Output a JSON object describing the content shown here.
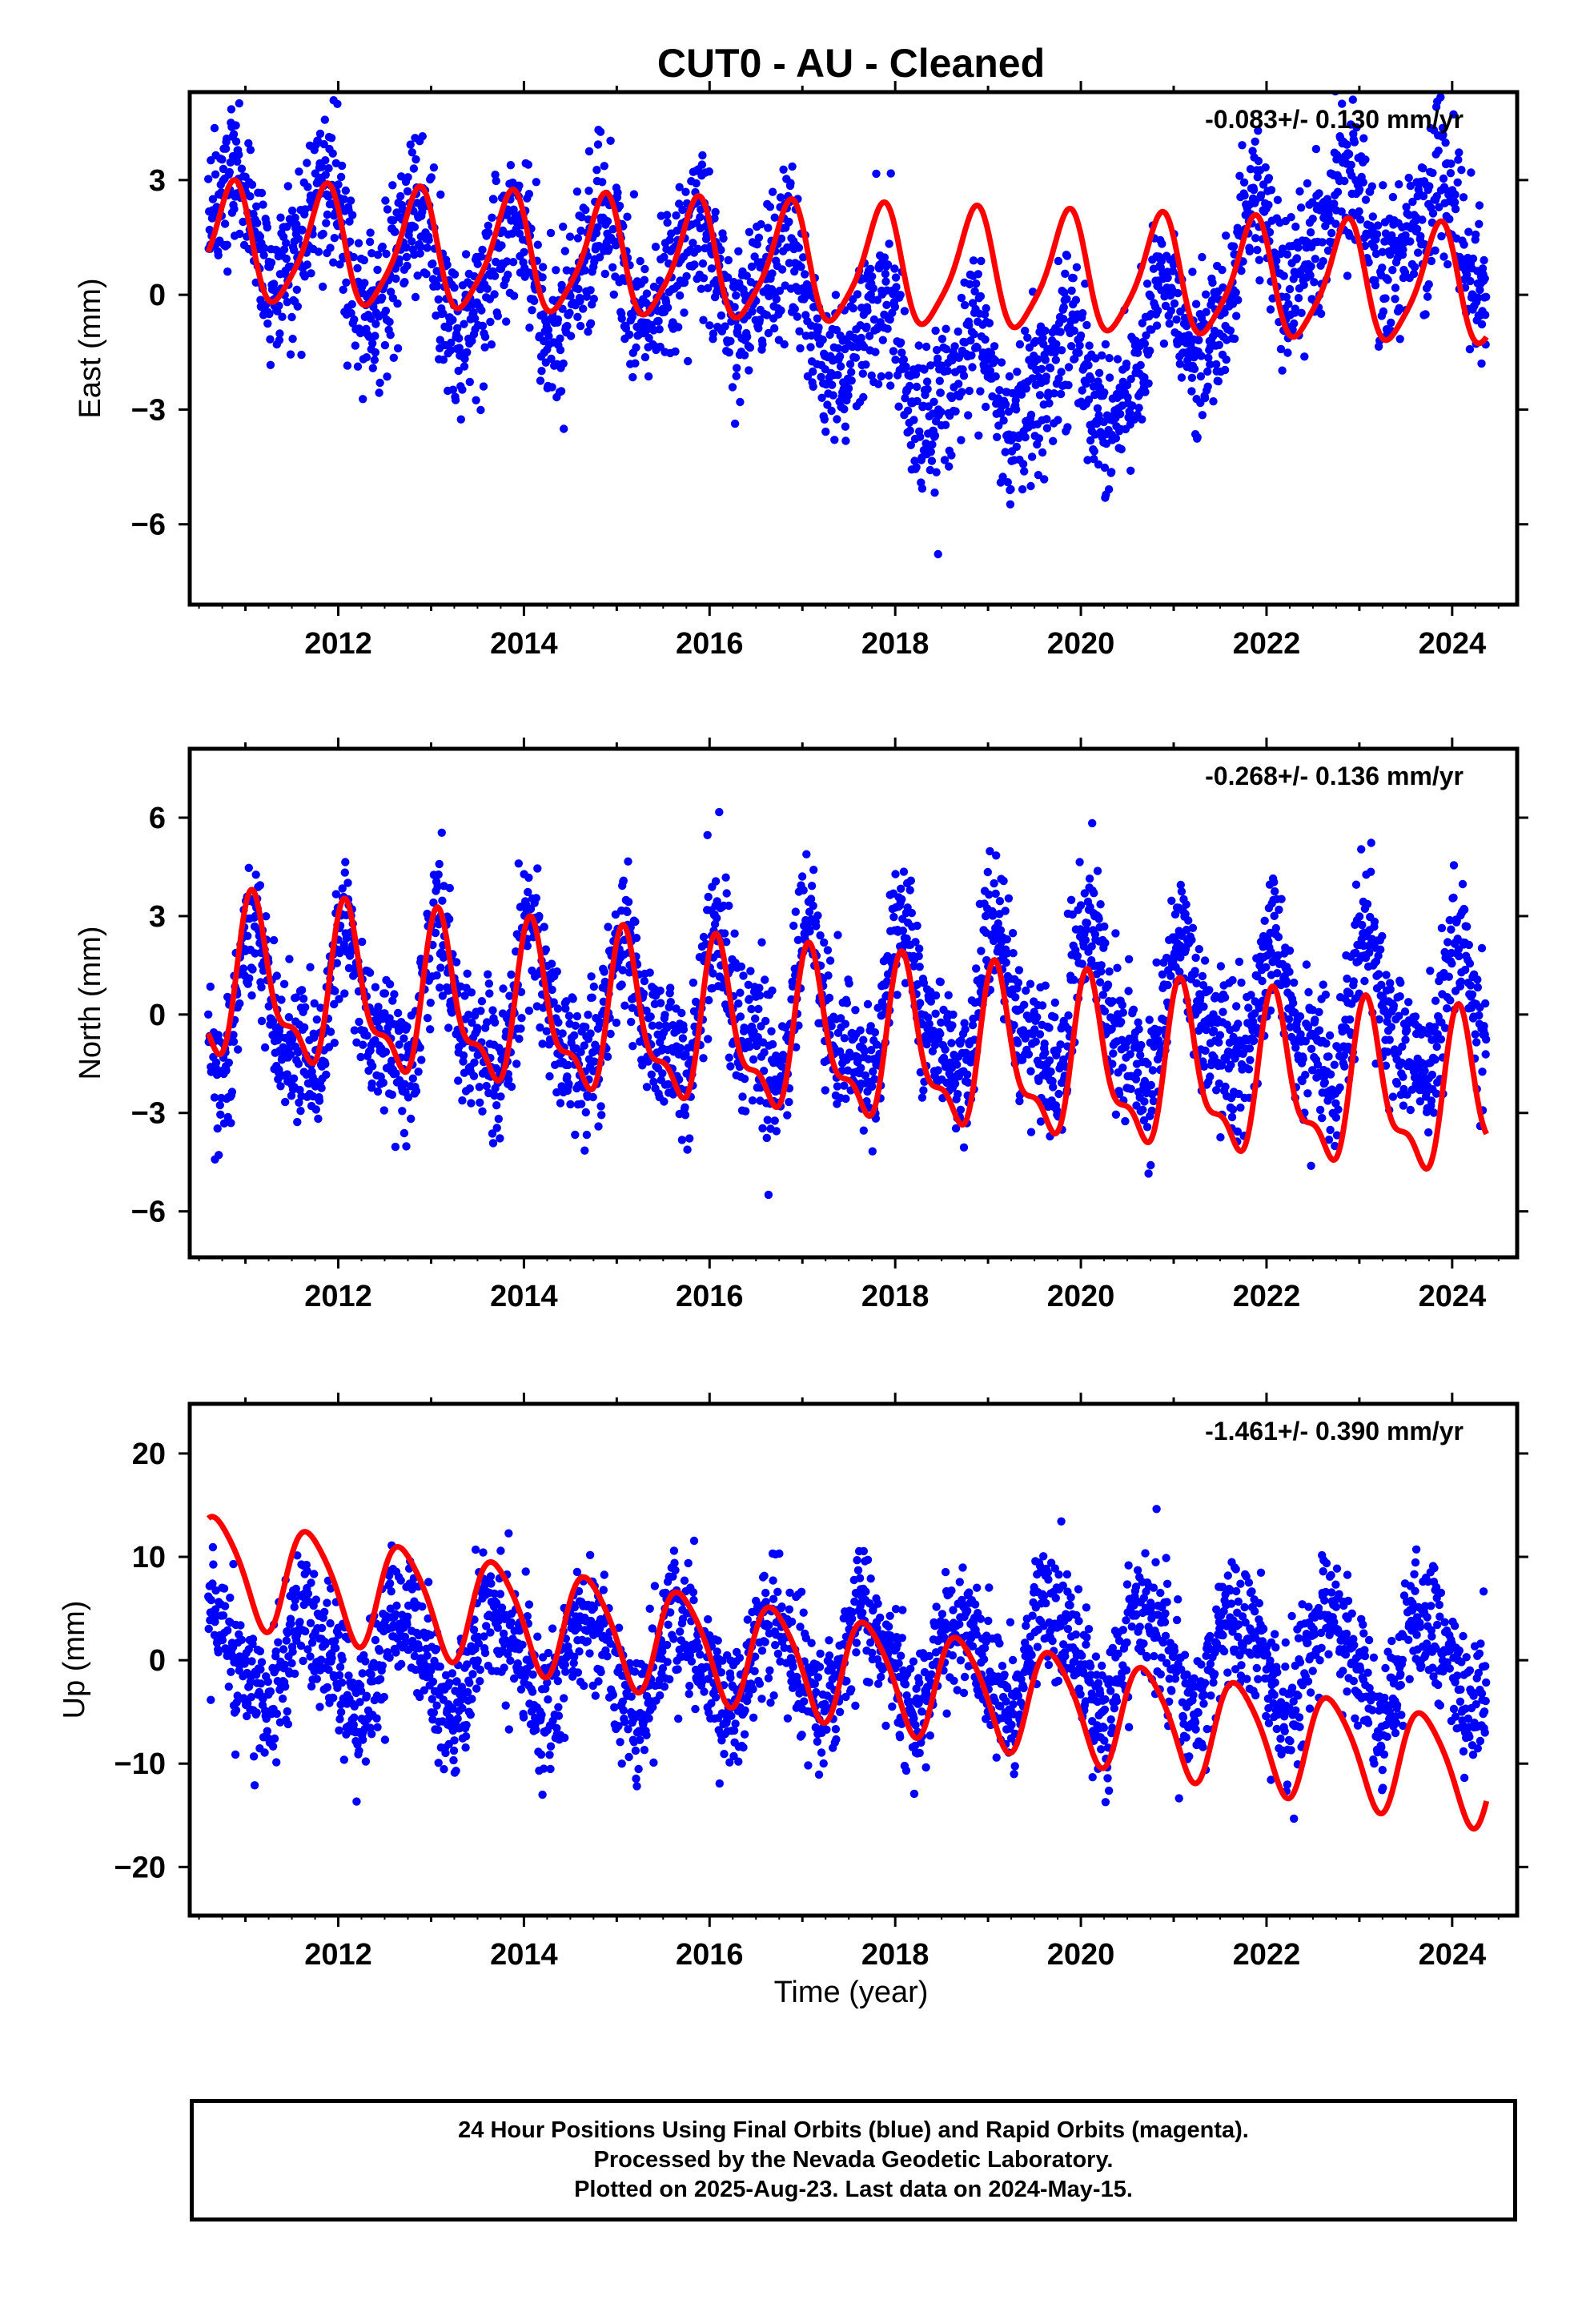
{
  "title": "CUT0  - AU - Cleaned",
  "xlabel": "Time (year)",
  "colors": {
    "points": "#0000ff",
    "fit": "#ff0000",
    "frame": "#000000"
  },
  "footer": [
    "24 Hour Positions Using Final Orbits (blue) and Rapid Orbits (magenta).",
    "Processed by the Nevada Geodetic Laboratory.",
    "Plotted on 2025-Aug-23. Last data on 2024-May-15."
  ],
  "chart_data": [
    {
      "type": "scatter",
      "ylabel": "East (mm)",
      "rate_label": "-0.083+/- 0.130 mm/yr",
      "xlim": [
        2010.4,
        2024.7
      ],
      "ylim": [
        -8.1,
        5.3
      ],
      "xticks": [
        2012,
        2014,
        2016,
        2018,
        2020,
        2022,
        2024
      ],
      "yticks": [
        3,
        0,
        -3,
        -6
      ],
      "ytick_labels": [
        "3",
        "0",
        "−3",
        "−6"
      ],
      "data_span": [
        2010.6,
        2024.37
      ],
      "fit": {
        "offset": 1.3,
        "rate": -0.083,
        "annual_amp": 1.5,
        "annual_phase": 0.0,
        "semi_amp": 0.3,
        "semi_phase": 0.6
      },
      "scatter_segments": [
        {
          "x": [
            2010.6,
            2011.5
          ],
          "level": [
            1.9,
            1.6
          ]
        },
        {
          "x": [
            2011.5,
            2013.0
          ],
          "level": [
            1.6,
            0.4
          ]
        },
        {
          "x": [
            2013.0,
            2016.5
          ],
          "level": [
            0.4,
            0.5
          ]
        },
        {
          "x": [
            2016.5,
            2018.5
          ],
          "level": [
            0.4,
            -2.4
          ]
        },
        {
          "x": [
            2018.5,
            2020.7
          ],
          "level": [
            -2.4,
            -2.0
          ]
        },
        {
          "x": [
            2020.7,
            2021.7
          ],
          "level": [
            -1.2,
            0.0
          ]
        },
        {
          "x": [
            2021.7,
            2022.9
          ],
          "level": [
            0.6,
            2.1
          ]
        },
        {
          "x": [
            2022.9,
            2024.37
          ],
          "level": [
            2.0,
            1.5
          ]
        }
      ],
      "scatter_sigma": 1.0
    },
    {
      "type": "scatter",
      "ylabel": "North (mm)",
      "rate_label": "-0.268+/- 0.136 mm/yr",
      "xlim": [
        2010.4,
        2024.7
      ],
      "ylim": [
        -7.4,
        8.1
      ],
      "xticks": [
        2012,
        2014,
        2016,
        2018,
        2020,
        2022,
        2024
      ],
      "yticks": [
        6,
        3,
        0,
        -3,
        -6
      ],
      "ytick_labels": [
        "6",
        "3",
        "0",
        "−3",
        "−6"
      ],
      "data_span": [
        2010.6,
        2024.37
      ],
      "fit": {
        "offset": 0.9,
        "rate": -0.268,
        "annual_amp": 2.2,
        "annual_phase": -0.25,
        "semi_amp": 0.9,
        "semi_phase": 0.35
      },
      "scatter_segments": [
        {
          "x": [
            2010.6,
            2024.37
          ],
          "level": [
            0.0,
            0.0
          ]
        }
      ],
      "scatter_sigma": 1.1
    },
    {
      "type": "scatter",
      "ylabel": "Up (mm)",
      "rate_label": "-1.461+/- 0.390 mm/yr",
      "xlim": [
        2010.4,
        2024.7
      ],
      "ylim": [
        -24.7,
        24.8
      ],
      "xticks": [
        2012,
        2014,
        2016,
        2018,
        2020,
        2022,
        2024
      ],
      "yticks": [
        20,
        10,
        0,
        -10,
        -20
      ],
      "ytick_labels": [
        "20",
        "10",
        "0",
        "−10",
        "−20"
      ],
      "data_span": [
        2010.6,
        2024.37
      ],
      "fit": {
        "offset": 9.2,
        "rate": -1.461,
        "annual_amp": 5.0,
        "annual_phase": 0.15,
        "semi_amp": 0.8,
        "semi_phase": 0.4
      },
      "scatter_segments": [
        {
          "x": [
            2010.6,
            2024.37
          ],
          "level": [
            0.0,
            0.0
          ]
        }
      ],
      "scatter_sigma": 3.2
    }
  ]
}
